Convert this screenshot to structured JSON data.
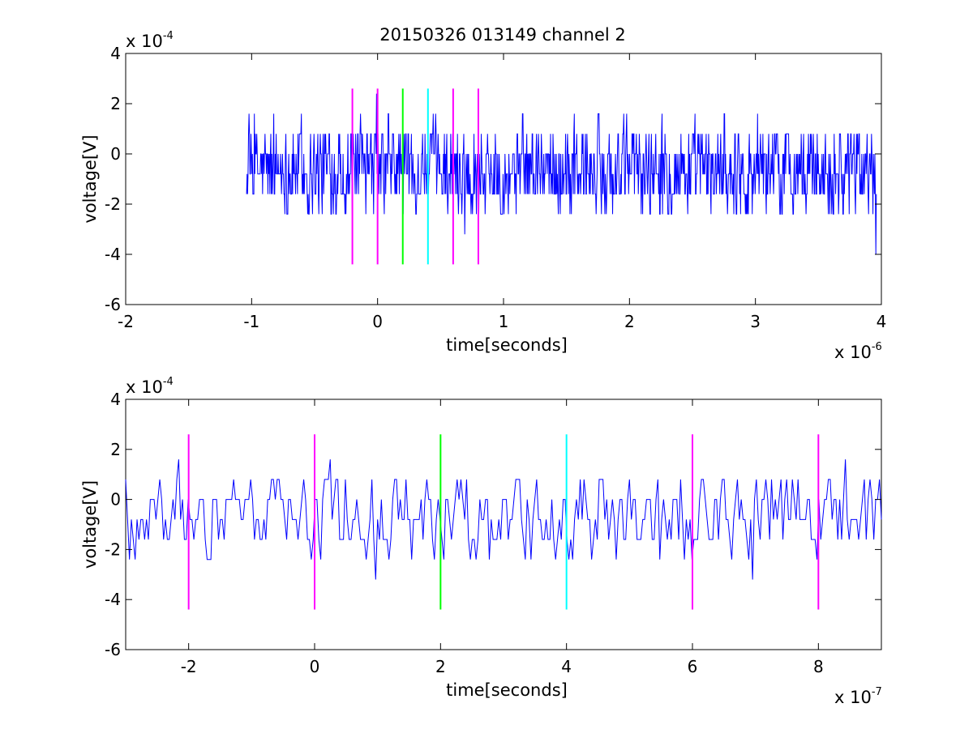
{
  "figure": {
    "title": "20150326 013149 channel 2",
    "background": "#ffffff"
  },
  "chart_data": [
    {
      "type": "line",
      "panel": "top",
      "title": "20150326 013149 channel 2",
      "xlabel": "time[seconds]",
      "ylabel": "voltage[V]",
      "x_exponent": {
        "base": "x 10",
        "power": "-6"
      },
      "y_exponent": {
        "base": "x 10",
        "power": "-4"
      },
      "xlim": [
        -2,
        4
      ],
      "ylim": [
        -6,
        4
      ],
      "xticks": [
        -2,
        -1,
        0,
        1,
        2,
        3,
        4
      ],
      "yticks": [
        -6,
        -4,
        -2,
        0,
        2,
        4
      ],
      "grid": false,
      "signal": {
        "color": "#0000ff",
        "x_start": -1.04,
        "x_end": 3.96,
        "quantization_step": 0.8,
        "approx_range": [
          -4.0,
          2.4
        ]
      },
      "markers": [
        {
          "x": -0.2,
          "color": "#ff00ff",
          "y_range": [
            -4.4,
            2.6
          ]
        },
        {
          "x": 0.0,
          "color": "#ff00ff",
          "y_range": [
            -4.4,
            2.6
          ]
        },
        {
          "x": 0.2,
          "color": "#00ff00",
          "y_range": [
            -4.4,
            2.6
          ]
        },
        {
          "x": 0.4,
          "color": "#00ffff",
          "y_range": [
            -4.4,
            2.6
          ]
        },
        {
          "x": 0.6,
          "color": "#ff00ff",
          "y_range": [
            -4.4,
            2.6
          ]
        },
        {
          "x": 0.8,
          "color": "#ff00ff",
          "y_range": [
            -4.4,
            2.6
          ]
        }
      ]
    },
    {
      "type": "line",
      "panel": "bottom",
      "xlabel": "time[seconds]",
      "ylabel": "voltage[V]",
      "x_exponent": {
        "base": "x 10",
        "power": "-7"
      },
      "y_exponent": {
        "base": "x 10",
        "power": "-4"
      },
      "xlim": [
        -3,
        9
      ],
      "ylim": [
        -6,
        4
      ],
      "xticks": [
        -2,
        0,
        2,
        4,
        6,
        8
      ],
      "yticks": [
        -6,
        -4,
        -2,
        0,
        2,
        4
      ],
      "grid": false,
      "signal": {
        "color": "#0000ff",
        "x_start": -3,
        "x_end": 9,
        "quantization_step": 0.8,
        "approx_range": [
          -3.2,
          2.4
        ]
      },
      "markers": [
        {
          "x": -2,
          "color": "#ff00ff",
          "y_range": [
            -4.4,
            2.6
          ]
        },
        {
          "x": 0,
          "color": "#ff00ff",
          "y_range": [
            -4.4,
            2.6
          ]
        },
        {
          "x": 2,
          "color": "#00ff00",
          "y_range": [
            -4.4,
            2.6
          ]
        },
        {
          "x": 4,
          "color": "#00ffff",
          "y_range": [
            -4.4,
            2.6
          ]
        },
        {
          "x": 6,
          "color": "#ff00ff",
          "y_range": [
            -4.4,
            2.6
          ]
        },
        {
          "x": 8,
          "color": "#ff00ff",
          "y_range": [
            -4.4,
            2.6
          ]
        }
      ]
    }
  ]
}
